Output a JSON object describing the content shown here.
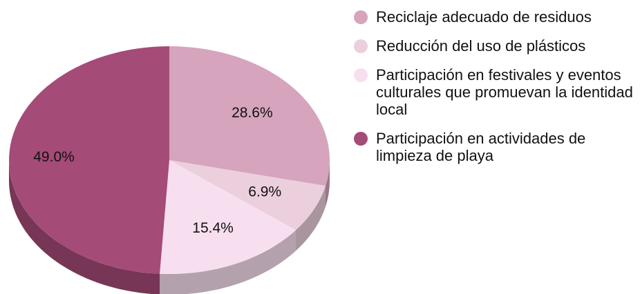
{
  "chart_data": {
    "type": "pie",
    "categories": [
      "Reciclaje adecuado de residuos",
      "Reducción del uso de plásticos",
      "Participación en festivales y eventos culturales que promuevan la identidad local",
      "Participación en actividades de limpieza de playa"
    ],
    "values": [
      28.6,
      6.9,
      15.4,
      49.0
    ],
    "value_labels": [
      "28.6%",
      "6.9%",
      "15.4%",
      "49.0%"
    ],
    "colors": [
      "#d6a4bd",
      "#ebcfdc",
      "#f8dff0",
      "#a54b78"
    ],
    "legend": "right"
  }
}
